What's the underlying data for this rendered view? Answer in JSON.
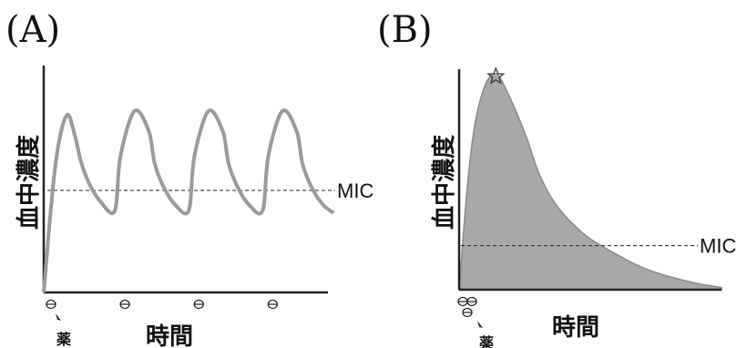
{
  "panels": [
    {
      "id": "A",
      "label": "(A)",
      "ylabel": "血中濃度",
      "xlabel": "時間",
      "drug_label": "薬",
      "mic_label": "MIC"
    },
    {
      "id": "B",
      "label": "(B)",
      "ylabel": "血中濃度",
      "xlabel": "時間",
      "drug_label": "薬",
      "mic_label": "MIC"
    }
  ],
  "chart_data": [
    {
      "type": "line",
      "title": "(A)",
      "xlabel": "時間",
      "ylabel": "血中濃度",
      "xlim": [
        0,
        10
      ],
      "ylim": [
        0,
        10
      ],
      "grid": false,
      "mic": 4.5,
      "dose_times": [
        0,
        2.6,
        5.2,
        7.8
      ],
      "series": [
        {
          "x": [
            0,
            0.4,
            0.8,
            1.1,
            1.3,
            1.6,
            2.0,
            2.5,
            2.7,
            3.2,
            3.7,
            3.9,
            4.2,
            4.6,
            5.1,
            5.3,
            5.8,
            6.3,
            6.5,
            6.8,
            7.2,
            7.7,
            7.9,
            8.4,
            8.9,
            9.1,
            9.4,
            9.8,
            10.2
          ],
          "y": [
            0,
            5.5,
            7.8,
            6.9,
            5.8,
            4.8,
            4.0,
            3.6,
            6.0,
            8.0,
            7.1,
            5.7,
            4.7,
            3.9,
            3.6,
            6.0,
            8.0,
            7.1,
            5.7,
            4.7,
            3.9,
            3.6,
            6.0,
            8.0,
            7.1,
            5.7,
            4.7,
            3.9,
            3.5
          ]
        }
      ],
      "color": "#9a9a9a"
    },
    {
      "type": "area",
      "title": "(B)",
      "xlabel": "時間",
      "ylabel": "血中濃度",
      "xlim": [
        0,
        10
      ],
      "ylim": [
        0,
        10
      ],
      "grid": false,
      "mic": 2.0,
      "dose_times": [
        0
      ],
      "peak_marker": "star",
      "series": [
        {
          "x": [
            0,
            0.3,
            0.6,
            1.0,
            1.4,
            1.7,
            2.2,
            2.6,
            3.0,
            3.5,
            4.0,
            4.5,
            5.0,
            6.0,
            7.0,
            8.0,
            9.0,
            10.0
          ],
          "y": [
            0,
            4.5,
            7.5,
            9.3,
            9.8,
            9.3,
            8.0,
            6.8,
            5.4,
            4.2,
            3.4,
            2.8,
            2.3,
            1.6,
            1.0,
            0.6,
            0.3,
            0.1
          ]
        }
      ],
      "color": "#a8a8a8"
    }
  ]
}
